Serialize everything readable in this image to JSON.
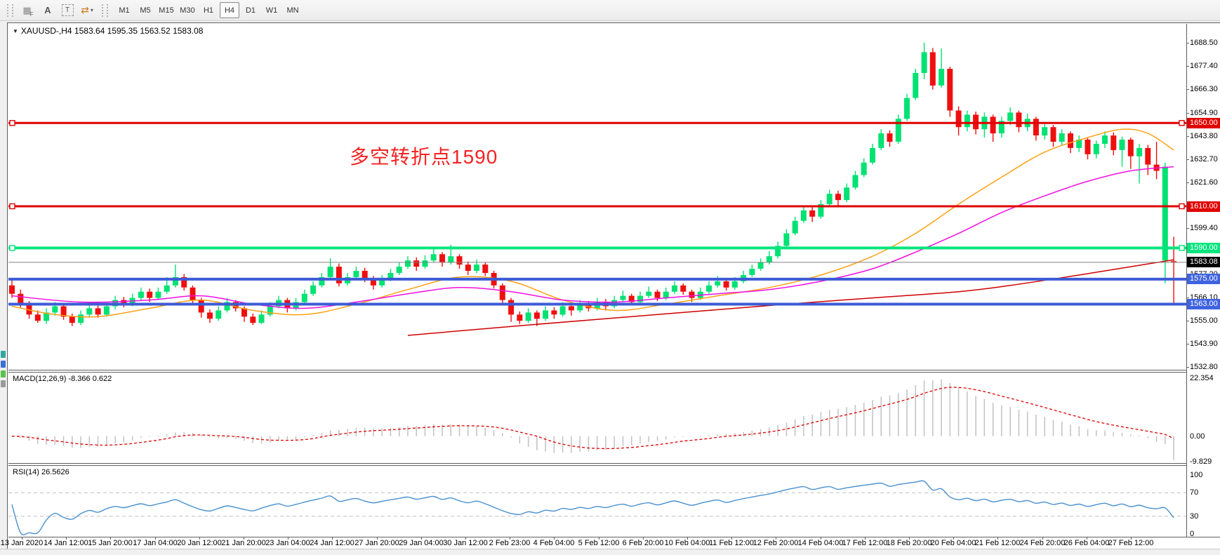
{
  "toolbar": {
    "icons": [
      {
        "name": "indicators-grid-icon",
        "glyph": "▦",
        "sub": "F"
      },
      {
        "name": "text-label-icon",
        "glyph": "A"
      },
      {
        "name": "text-box-icon",
        "glyph": "T"
      },
      {
        "name": "arrange-arrows-icon",
        "glyph": "⇄",
        "caret": "▾"
      }
    ],
    "timeframes": [
      "M1",
      "M5",
      "M15",
      "M30",
      "H1",
      "H4",
      "D1",
      "W1",
      "MN"
    ],
    "active_timeframe": "H4"
  },
  "chart": {
    "symbol_line": "XAUUSD-,H4  1583.64 1595.35 1563.52 1583.08",
    "symbol": "XAUUSD-",
    "timeframe": "H4",
    "ohlc": {
      "open": 1583.64,
      "high": 1595.35,
      "low": 1563.52,
      "close": 1583.08
    },
    "annotation": {
      "text": "多空转折点1590",
      "color": "#f52222"
    },
    "price_axis": {
      "max": 1697.6,
      "min": 1531.5,
      "ticks": [
        "1688.50",
        "1677.40",
        "1666.30",
        "1654.90",
        "1643.80",
        "1632.70",
        "1621.60",
        "1610.50",
        "1599.40",
        "1588.30",
        "1577.20",
        "1566.10",
        "1555.00",
        "1543.90",
        "1532.80"
      ]
    },
    "hlines": [
      {
        "price": 1650.0,
        "label": "1650.00",
        "color": "#e00000",
        "badge_bg": "#e00000",
        "width": 3,
        "handles": true
      },
      {
        "price": 1610.0,
        "label": "1610.00",
        "color": "#e00000",
        "badge_bg": "#e00000",
        "width": 3,
        "handles": true
      },
      {
        "price": 1590.0,
        "label": "1590.00",
        "color": "#00e57c",
        "badge_bg": "#00e57c",
        "width": 4,
        "handles": true
      },
      {
        "price": 1583.08,
        "label": "1583.08",
        "color": "#808080",
        "badge_bg": "#000000",
        "width": 1,
        "handles": false
      },
      {
        "price": 1575.0,
        "label": "1575.00",
        "color": "#3c5bd7",
        "badge_bg": "#3f63e0",
        "width": 4,
        "handles": false
      },
      {
        "price": 1563.0,
        "label": "1563.00",
        "color": "#3c5bd7",
        "badge_bg": "#3f63e0",
        "width": 4,
        "handles": false
      }
    ],
    "colors": {
      "bull": "#00e272",
      "bear": "#ee0f0f"
    },
    "ma_lines": [
      {
        "name": "ma-fast-orange",
        "color": "#ffa013",
        "width": 1.5,
        "points": [
          [
            0,
            1562
          ],
          [
            5,
            1558
          ],
          [
            10,
            1557
          ],
          [
            16,
            1561
          ],
          [
            22,
            1565
          ],
          [
            28,
            1560
          ],
          [
            34,
            1558
          ],
          [
            40,
            1563
          ],
          [
            46,
            1570
          ],
          [
            52,
            1576
          ],
          [
            58,
            1574
          ],
          [
            64,
            1565
          ],
          [
            70,
            1560
          ],
          [
            76,
            1563
          ],
          [
            82,
            1567
          ],
          [
            88,
            1571
          ],
          [
            94,
            1577
          ],
          [
            100,
            1586
          ],
          [
            105,
            1597
          ],
          [
            110,
            1611
          ],
          [
            115,
            1624
          ],
          [
            120,
            1636
          ],
          [
            125,
            1643
          ],
          [
            129,
            1647
          ],
          [
            132,
            1645
          ],
          [
            135,
            1637
          ]
        ]
      },
      {
        "name": "ma-mid-magenta",
        "color": "#f20fe2",
        "width": 1.5,
        "points": [
          [
            0,
            1567
          ],
          [
            8,
            1564
          ],
          [
            16,
            1565
          ],
          [
            22,
            1567
          ],
          [
            28,
            1563
          ],
          [
            34,
            1561
          ],
          [
            40,
            1564
          ],
          [
            46,
            1568
          ],
          [
            52,
            1571
          ],
          [
            58,
            1569
          ],
          [
            64,
            1565
          ],
          [
            70,
            1564
          ],
          [
            76,
            1566
          ],
          [
            82,
            1568
          ],
          [
            88,
            1570
          ],
          [
            94,
            1574
          ],
          [
            100,
            1580
          ],
          [
            105,
            1588
          ],
          [
            110,
            1597
          ],
          [
            115,
            1607
          ],
          [
            120,
            1615
          ],
          [
            125,
            1622
          ],
          [
            130,
            1627
          ],
          [
            135,
            1629
          ]
        ]
      },
      {
        "name": "ma-long-red",
        "color": "#d00000",
        "width": 1.5,
        "points": [
          [
            46,
            1548
          ],
          [
            60,
            1553
          ],
          [
            75,
            1558
          ],
          [
            90,
            1563
          ],
          [
            100,
            1566
          ],
          [
            110,
            1569
          ],
          [
            116,
            1572
          ],
          [
            124,
            1577
          ],
          [
            130,
            1581
          ],
          [
            135,
            1584.3
          ]
        ]
      }
    ],
    "candles": [
      [
        1572,
        1574.5,
        1566,
        1568
      ],
      [
        1568,
        1570,
        1561.5,
        1563
      ],
      [
        1563,
        1564.5,
        1556,
        1558
      ],
      [
        1558,
        1560,
        1554,
        1555
      ],
      [
        1555,
        1561,
        1553.5,
        1559
      ],
      [
        1559,
        1564,
        1557.5,
        1562
      ],
      [
        1562,
        1563.5,
        1555.5,
        1557
      ],
      [
        1557,
        1558.5,
        1552.5,
        1554
      ],
      [
        1554,
        1560,
        1553,
        1558
      ],
      [
        1558,
        1563,
        1556.5,
        1561
      ],
      [
        1561,
        1562.5,
        1556.5,
        1558
      ],
      [
        1558,
        1564,
        1557,
        1562
      ],
      [
        1562,
        1567,
        1560.5,
        1565
      ],
      [
        1565,
        1566.5,
        1561.5,
        1563
      ],
      [
        1563,
        1568,
        1562,
        1566
      ],
      [
        1566,
        1571,
        1564.5,
        1569
      ],
      [
        1569,
        1570.5,
        1564,
        1566
      ],
      [
        1566,
        1571,
        1565,
        1569
      ],
      [
        1569,
        1576,
        1568,
        1572
      ],
      [
        1572,
        1582,
        1571,
        1576
      ],
      [
        1576,
        1577.5,
        1569.5,
        1571
      ],
      [
        1571,
        1572,
        1563.5,
        1565
      ],
      [
        1565,
        1566,
        1556.5,
        1559
      ],
      [
        1559,
        1560.5,
        1554,
        1556
      ],
      [
        1556,
        1562,
        1555,
        1560
      ],
      [
        1560,
        1566,
        1559,
        1564
      ],
      [
        1564,
        1565,
        1559.5,
        1561
      ],
      [
        1561,
        1562,
        1554.5,
        1557
      ],
      [
        1557,
        1558.5,
        1553,
        1554
      ],
      [
        1554,
        1560,
        1553.5,
        1558
      ],
      [
        1558,
        1564,
        1557,
        1562
      ],
      [
        1562,
        1567,
        1561,
        1565
      ],
      [
        1565,
        1566,
        1559,
        1561
      ],
      [
        1561,
        1566,
        1560,
        1564
      ],
      [
        1564,
        1570,
        1563,
        1568
      ],
      [
        1568,
        1574,
        1567,
        1572
      ],
      [
        1572,
        1578,
        1571,
        1576
      ],
      [
        1576,
        1585,
        1575,
        1581
      ],
      [
        1581,
        1582.5,
        1571.5,
        1573
      ],
      [
        1573,
        1578,
        1572,
        1576
      ],
      [
        1576,
        1581,
        1575,
        1579
      ],
      [
        1579,
        1580.5,
        1573.5,
        1575
      ],
      [
        1575,
        1576.5,
        1570,
        1572
      ],
      [
        1572,
        1577,
        1571,
        1575
      ],
      [
        1575,
        1580,
        1574,
        1578
      ],
      [
        1578,
        1583,
        1577,
        1581
      ],
      [
        1581,
        1586,
        1580,
        1584
      ],
      [
        1584,
        1585.5,
        1579,
        1581
      ],
      [
        1581,
        1586.5,
        1580,
        1584
      ],
      [
        1584,
        1590,
        1583,
        1587
      ],
      [
        1587,
        1588,
        1581,
        1583
      ],
      [
        1583,
        1591.5,
        1582,
        1586
      ],
      [
        1586,
        1587,
        1580,
        1582
      ],
      [
        1582,
        1583.5,
        1577,
        1579
      ],
      [
        1579,
        1584.5,
        1578,
        1582
      ],
      [
        1582,
        1583,
        1576.5,
        1578
      ],
      [
        1578,
        1579,
        1570.5,
        1572
      ],
      [
        1572,
        1573,
        1563.5,
        1565
      ],
      [
        1565,
        1566,
        1554.5,
        1558
      ],
      [
        1558,
        1559.5,
        1553.5,
        1555
      ],
      [
        1555,
        1561,
        1554,
        1559
      ],
      [
        1559,
        1560,
        1552.5,
        1556
      ],
      [
        1556,
        1562,
        1555,
        1560
      ],
      [
        1560,
        1561.5,
        1556,
        1558
      ],
      [
        1558,
        1564,
        1557,
        1562
      ],
      [
        1562,
        1563,
        1557.5,
        1560
      ],
      [
        1560,
        1565,
        1559,
        1563
      ],
      [
        1563,
        1564.5,
        1559.5,
        1561
      ],
      [
        1561,
        1566,
        1560,
        1564
      ],
      [
        1564,
        1565.5,
        1560,
        1562
      ],
      [
        1562,
        1567,
        1561,
        1565
      ],
      [
        1565,
        1569.5,
        1564,
        1567
      ],
      [
        1567,
        1568,
        1562.5,
        1564
      ],
      [
        1564,
        1569,
        1563,
        1567
      ],
      [
        1567,
        1571.5,
        1566,
        1569
      ],
      [
        1569,
        1570,
        1564.5,
        1566
      ],
      [
        1566,
        1571,
        1565,
        1569
      ],
      [
        1569,
        1574,
        1568,
        1572
      ],
      [
        1572,
        1573,
        1567.5,
        1569
      ],
      [
        1569,
        1570,
        1564,
        1566
      ],
      [
        1566,
        1571,
        1565,
        1569
      ],
      [
        1569,
        1574,
        1568,
        1572
      ],
      [
        1572,
        1576.5,
        1571,
        1574
      ],
      [
        1574,
        1575,
        1569.5,
        1571
      ],
      [
        1571,
        1576,
        1570,
        1574
      ],
      [
        1574,
        1579,
        1573,
        1577
      ],
      [
        1577,
        1582,
        1576,
        1580
      ],
      [
        1580,
        1585,
        1579,
        1583
      ],
      [
        1583,
        1588.5,
        1582,
        1586
      ],
      [
        1586,
        1593,
        1585,
        1591
      ],
      [
        1591,
        1599,
        1590,
        1597
      ],
      [
        1597,
        1605,
        1596,
        1603
      ],
      [
        1603,
        1610,
        1602,
        1608
      ],
      [
        1608,
        1609.5,
        1602.5,
        1605
      ],
      [
        1605,
        1613,
        1604,
        1611
      ],
      [
        1611,
        1618,
        1610,
        1616
      ],
      [
        1616,
        1617.5,
        1610.5,
        1613
      ],
      [
        1613,
        1621,
        1612,
        1619
      ],
      [
        1619,
        1627,
        1618,
        1625
      ],
      [
        1625,
        1633,
        1624,
        1631
      ],
      [
        1631,
        1640,
        1630,
        1638
      ],
      [
        1638,
        1647,
        1637,
        1645
      ],
      [
        1645,
        1646.5,
        1638.5,
        1641
      ],
      [
        1641,
        1654,
        1640,
        1652
      ],
      [
        1652,
        1664,
        1651,
        1662
      ],
      [
        1662,
        1676,
        1661,
        1674
      ],
      [
        1674,
        1688.6,
        1671,
        1684
      ],
      [
        1684,
        1686,
        1666,
        1668
      ],
      [
        1668,
        1685.7,
        1667,
        1676
      ],
      [
        1676,
        1677,
        1653,
        1656
      ],
      [
        1656,
        1658,
        1644,
        1648
      ],
      [
        1648,
        1656,
        1646,
        1654
      ],
      [
        1654,
        1655.5,
        1644.5,
        1647
      ],
      [
        1647,
        1655,
        1643,
        1653
      ],
      [
        1653,
        1654,
        1641,
        1645
      ],
      [
        1645,
        1653,
        1643,
        1651
      ],
      [
        1651,
        1657.5,
        1649,
        1655
      ],
      [
        1655,
        1656,
        1645.5,
        1648
      ],
      [
        1648,
        1654.5,
        1646,
        1652
      ],
      [
        1652,
        1653,
        1641.5,
        1644
      ],
      [
        1644,
        1650,
        1642,
        1648
      ],
      [
        1648,
        1649,
        1638.5,
        1641
      ],
      [
        1641,
        1647,
        1639,
        1645
      ],
      [
        1645,
        1646,
        1635.5,
        1638
      ],
      [
        1638,
        1644,
        1636,
        1642
      ],
      [
        1642,
        1643,
        1632.5,
        1635
      ],
      [
        1635,
        1641.5,
        1633,
        1640
      ],
      [
        1640,
        1646,
        1638,
        1644
      ],
      [
        1644,
        1645.5,
        1634.5,
        1637
      ],
      [
        1637,
        1643.5,
        1629,
        1642
      ],
      [
        1642,
        1643,
        1628,
        1634
      ],
      [
        1634,
        1640,
        1621,
        1638
      ],
      [
        1638,
        1639.5,
        1625,
        1630
      ],
      [
        1630,
        1641,
        1623,
        1627
      ],
      [
        1584,
        1631,
        1573,
        1629
      ],
      [
        1583.64,
        1595.35,
        1563.52,
        1583.08
      ]
    ]
  },
  "macd": {
    "label": "MACD(12,26,9) -8.366 0.622",
    "params": [
      12,
      26,
      9
    ],
    "value": -8.366,
    "signal_value": 0.622,
    "axis": {
      "max": 22.354,
      "max_label": "22.354",
      "zero_label": "0.00",
      "min": -9.829,
      "min_label": "-9.829"
    },
    "colors": {
      "histogram": "#c2c2c2",
      "signal": "#e00000"
    }
  },
  "rsi": {
    "label": "RSI(14) 26.5626",
    "period": 14,
    "value": 26.5626,
    "levels": [
      70,
      30
    ],
    "axis_labels": [
      "100",
      "70",
      "30",
      "0"
    ],
    "color": "#4890cf",
    "level_color": "#bfbfbf"
  },
  "time_axis": {
    "labels": [
      "13 Jan 2020",
      "14 Jan 12:00",
      "15 Jan 20:00",
      "17 Jan 04:00",
      "20 Jan 12:00",
      "21 Jan 20:00",
      "23 Jan 04:00",
      "24 Jan 12:00",
      "27 Jan 20:00",
      "29 Jan 04:00",
      "30 Jan 12:00",
      "2 Feb 23:00",
      "4 Feb 04:00",
      "5 Feb 12:00",
      "6 Feb 20:00",
      "10 Feb 04:00",
      "11 Feb 12:00",
      "12 Feb 20:00",
      "14 Feb 04:00",
      "17 Feb 12:00",
      "18 Feb 20:00",
      "20 Feb 04:00",
      "21 Feb 12:00",
      "24 Feb 20:00",
      "26 Feb 04:00",
      "27 Feb 12:00"
    ]
  },
  "chart_data": {
    "type": "candlestick-ohlc",
    "note": "values mirrored from chart.candles; panes: MACD(12,26,9) and RSI(14) derived from closes",
    "price_range": [
      1532.8,
      1688.5
    ],
    "macd_range": [
      -9.829,
      22.354
    ],
    "rsi_range": [
      0,
      100
    ]
  }
}
